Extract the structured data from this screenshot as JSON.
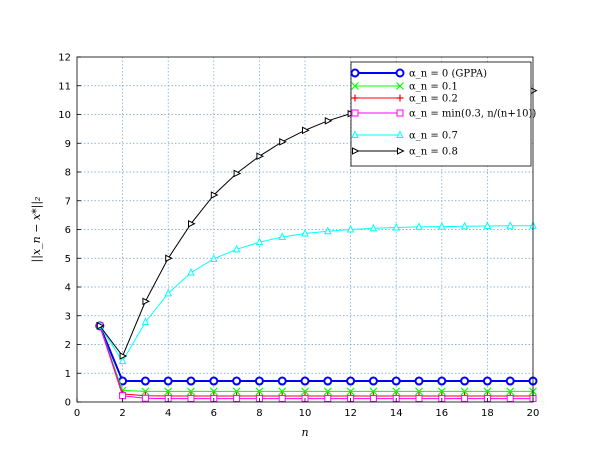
{
  "chart_data": {
    "type": "line",
    "xlabel": "n",
    "ylabel": "||x_n − x*||₂",
    "xlim": [
      0,
      20
    ],
    "ylim": [
      0,
      12
    ],
    "x_ticks": [
      0,
      2,
      4,
      6,
      8,
      10,
      12,
      14,
      16,
      18,
      20
    ],
    "y_ticks": [
      0,
      1,
      2,
      3,
      4,
      5,
      6,
      7,
      8,
      9,
      10,
      11,
      12
    ],
    "grid": true,
    "legend_position": "top-right",
    "x": [
      1,
      2,
      3,
      4,
      5,
      6,
      7,
      8,
      9,
      10,
      11,
      12,
      13,
      14,
      15,
      16,
      17,
      18,
      19,
      20
    ],
    "series": [
      {
        "name": "α_n = 0 (GPPA)",
        "color": "#0000ff",
        "marker": "circle",
        "values": [
          2.65,
          0.73,
          0.73,
          0.73,
          0.73,
          0.73,
          0.73,
          0.73,
          0.73,
          0.73,
          0.73,
          0.73,
          0.73,
          0.73,
          0.73,
          0.73,
          0.73,
          0.73,
          0.73,
          0.73
        ]
      },
      {
        "name": "α_n = 0.1",
        "color": "#00ff00",
        "marker": "x",
        "values": [
          2.65,
          0.4,
          0.37,
          0.37,
          0.37,
          0.37,
          0.37,
          0.37,
          0.37,
          0.37,
          0.37,
          0.37,
          0.37,
          0.37,
          0.37,
          0.37,
          0.37,
          0.37,
          0.37,
          0.37
        ]
      },
      {
        "name": "α_n = 0.2",
        "color": "#ff0000",
        "marker": "plus",
        "values": [
          2.65,
          0.28,
          0.22,
          0.21,
          0.21,
          0.21,
          0.21,
          0.21,
          0.21,
          0.21,
          0.21,
          0.21,
          0.21,
          0.21,
          0.21,
          0.21,
          0.21,
          0.21,
          0.21,
          0.21
        ]
      },
      {
        "name": "α_n = min(0.3, n/(n+10))",
        "color": "#ff00ff",
        "marker": "square",
        "values": [
          2.65,
          0.22,
          0.13,
          0.12,
          0.12,
          0.12,
          0.12,
          0.12,
          0.12,
          0.12,
          0.12,
          0.12,
          0.12,
          0.12,
          0.12,
          0.12,
          0.12,
          0.12,
          0.12,
          0.12
        ]
      },
      {
        "name": "α_n = 0.7",
        "color": "#00ffff",
        "marker": "triangle-up",
        "values": [
          2.65,
          1.42,
          2.78,
          3.78,
          4.5,
          4.98,
          5.31,
          5.56,
          5.74,
          5.86,
          5.94,
          6.0,
          6.04,
          6.07,
          6.09,
          6.1,
          6.11,
          6.12,
          6.13,
          6.13
        ]
      },
      {
        "name": "α_n = 0.8",
        "color": "#000000",
        "marker": "triangle-right",
        "values": [
          2.65,
          1.6,
          3.5,
          5.0,
          6.2,
          7.2,
          7.95,
          8.55,
          9.05,
          9.45,
          9.78,
          10.03,
          10.2,
          10.37,
          10.5,
          10.6,
          10.68,
          10.74,
          10.8,
          10.83
        ]
      }
    ]
  }
}
